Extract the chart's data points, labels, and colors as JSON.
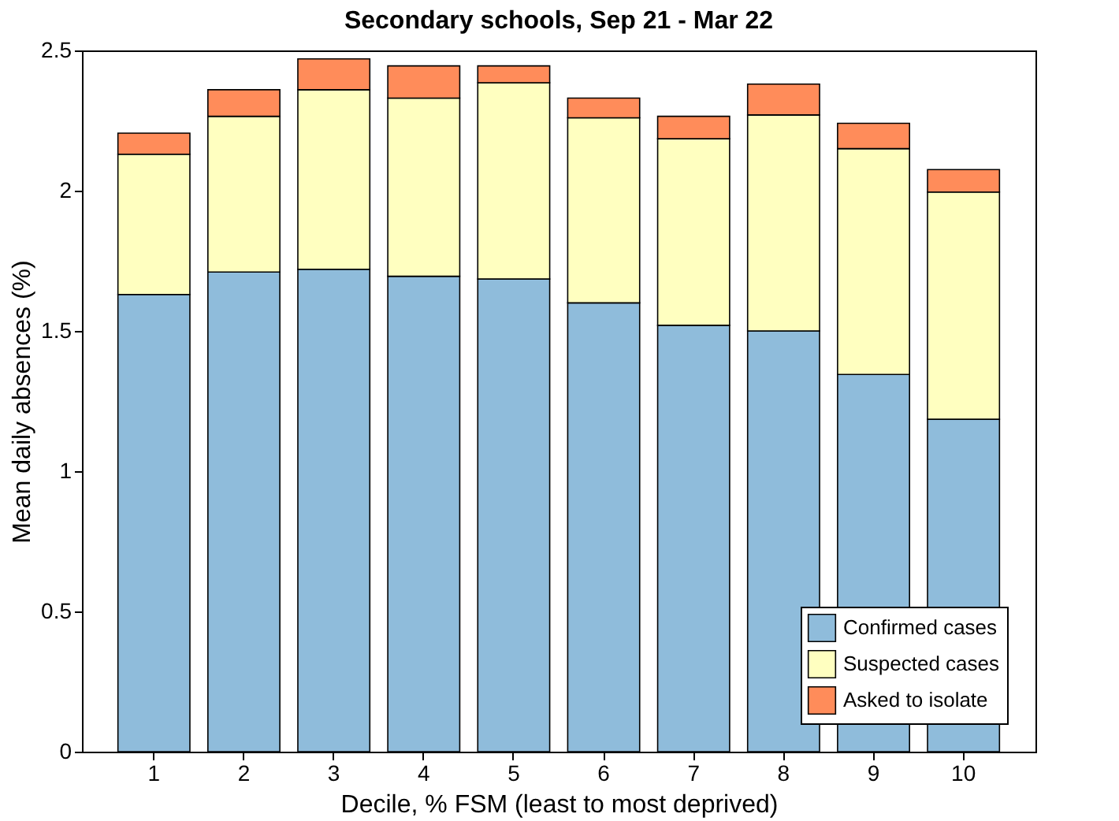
{
  "chart_data": {
    "type": "bar",
    "stacked": true,
    "title": "Secondary schools, Sep 21 - Mar 22",
    "xlabel": "Decile, % FSM (least to most deprived)",
    "ylabel": "Mean daily absences (%)",
    "categories": [
      "1",
      "2",
      "3",
      "4",
      "5",
      "6",
      "7",
      "8",
      "9",
      "10"
    ],
    "series": [
      {
        "name": "Confirmed cases",
        "color": "#8fbcdb",
        "values": [
          1.63,
          1.71,
          1.72,
          1.695,
          1.685,
          1.6,
          1.52,
          1.5,
          1.345,
          1.185
        ]
      },
      {
        "name": "Suspected cases",
        "color": "#ffffc0",
        "values": [
          0.5,
          0.555,
          0.64,
          0.635,
          0.7,
          0.66,
          0.665,
          0.77,
          0.805,
          0.81
        ]
      },
      {
        "name": "Asked to isolate",
        "color": "#ff8c5a",
        "values": [
          0.075,
          0.095,
          0.11,
          0.115,
          0.06,
          0.07,
          0.08,
          0.11,
          0.09,
          0.08
        ]
      }
    ],
    "ylim": [
      0,
      2.5
    ],
    "yticks": [
      0,
      0.5,
      1,
      1.5,
      2,
      2.5
    ],
    "grid": false,
    "legend": "bottom right"
  }
}
